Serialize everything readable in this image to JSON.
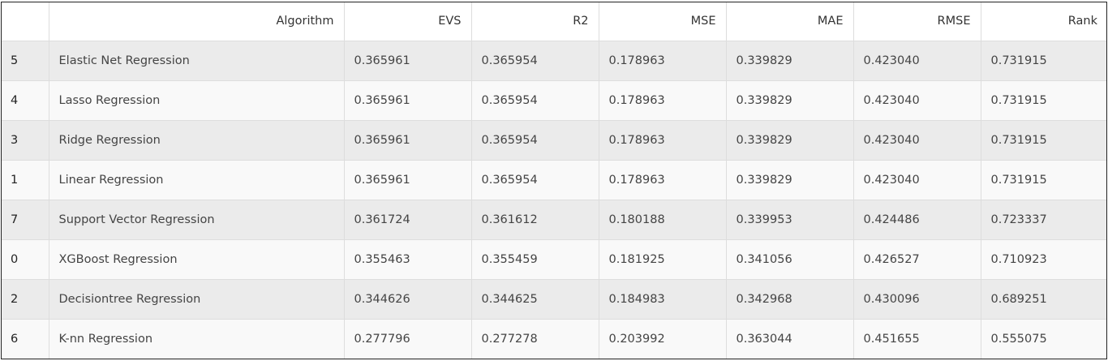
{
  "table": {
    "columns": [
      "",
      "Algorithm",
      "EVS",
      "R2",
      "MSE",
      "MAE",
      "RMSE",
      "Rank"
    ],
    "rows": [
      [
        "5",
        "Elastic Net Regression",
        "0.365961",
        "0.365954",
        "0.178963",
        "0.339829",
        "0.423040",
        "0.731915"
      ],
      [
        "4",
        "Lasso Regression",
        "0.365961",
        "0.365954",
        "0.178963",
        "0.339829",
        "0.423040",
        "0.731915"
      ],
      [
        "3",
        "Ridge Regression",
        "0.365961",
        "0.365954",
        "0.178963",
        "0.339829",
        "0.423040",
        "0.731915"
      ],
      [
        "1",
        "Linear Regression",
        "0.365961",
        "0.365954",
        "0.178963",
        "0.339829",
        "0.423040",
        "0.731915"
      ],
      [
        "7",
        "Support Vector Regression",
        "0.361724",
        "0.361612",
        "0.180188",
        "0.339953",
        "0.424486",
        "0.723337"
      ],
      [
        "0",
        "XGBoost Regression",
        "0.355463",
        "0.355459",
        "0.181925",
        "0.341056",
        "0.426527",
        "0.710923"
      ],
      [
        "2",
        "Decisiontree Regression",
        "0.344626",
        "0.344625",
        "0.184983",
        "0.342968",
        "0.430096",
        "0.689251"
      ],
      [
        "6",
        "K-nn Regression",
        "0.277796",
        "0.277278",
        "0.203992",
        "0.363044",
        "0.451655",
        "0.555075"
      ]
    ]
  },
  "colors": {
    "row_odd": "#ebebeb",
    "row_even": "#f9f9f9",
    "border": "#dddddd",
    "frame": "#222222"
  }
}
